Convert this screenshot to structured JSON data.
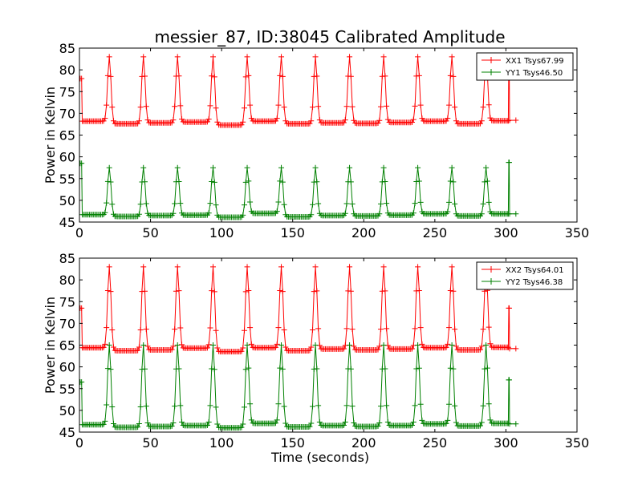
{
  "figure": {
    "title": "messier_87, ID:38045 Calibrated Amplitude"
  },
  "chart_data": [
    {
      "type": "line",
      "xlabel": "",
      "ylabel": "Power in Kelvin",
      "xlim": [
        0,
        350
      ],
      "ylim": [
        45,
        85
      ],
      "xticks": [
        "0",
        "50",
        "100",
        "150",
        "200",
        "250",
        "300",
        "350"
      ],
      "yticks": [
        "45",
        "50",
        "55",
        "60",
        "65",
        "70",
        "75",
        "80",
        "85"
      ],
      "legend_position": "top-right",
      "grid": false,
      "peak_times": [
        21,
        45,
        69,
        94,
        118,
        142,
        166,
        190,
        214,
        238,
        262,
        286
      ],
      "series": [
        {
          "name": "XX1 Tsys67.99",
          "color": "#ff0000",
          "marker": "+",
          "baseline": 67.9,
          "baselines": [
            68.2,
            67.6,
            67.8,
            68.0,
            67.3,
            68.2,
            67.6,
            67.8,
            67.7,
            67.9,
            68.2,
            67.6,
            68.3
          ],
          "peak": 83,
          "start_value": 78,
          "end_x": 302,
          "end_spike": 82,
          "tail_x": 307,
          "tail_value": 68.4
        },
        {
          "name": "YY1 Tsys46.50",
          "color": "#008000",
          "marker": "+",
          "baseline": 46.5,
          "baselines": [
            46.7,
            46.3,
            46.5,
            46.6,
            46.1,
            47.0,
            46.2,
            46.5,
            46.4,
            46.6,
            46.9,
            46.4,
            46.9
          ],
          "peak": 57.5,
          "start_value": 58.5,
          "end_x": 302,
          "end_spike": 58.7,
          "tail_x": 307,
          "tail_value": 46.9
        }
      ]
    },
    {
      "type": "line",
      "xlabel": "Time (seconds)",
      "ylabel": "Power in Kelvin",
      "xlim": [
        0,
        350
      ],
      "ylim": [
        45,
        85
      ],
      "xticks": [
        "0",
        "50",
        "100",
        "150",
        "200",
        "250",
        "300",
        "350"
      ],
      "yticks": [
        "45",
        "50",
        "55",
        "60",
        "65",
        "70",
        "75",
        "80",
        "85"
      ],
      "legend_position": "top-right",
      "grid": false,
      "peak_times": [
        21,
        45,
        69,
        94,
        118,
        142,
        166,
        190,
        214,
        238,
        262,
        286
      ],
      "series": [
        {
          "name": "XX2 Tsys64.01",
          "color": "#ff0000",
          "marker": "+",
          "baseline": 64.0,
          "baselines": [
            64.4,
            63.7,
            63.9,
            64.3,
            63.5,
            64.4,
            63.7,
            64.1,
            63.9,
            64.1,
            64.4,
            63.9,
            64.5
          ],
          "peak": 83,
          "start_value": 73.5,
          "end_x": 302,
          "end_spike": 73.5,
          "tail_x": 307,
          "tail_value": 64.2
        },
        {
          "name": "YY2 Tsys46.38",
          "color": "#008000",
          "marker": "+",
          "baseline": 46.5,
          "baselines": [
            46.7,
            46.1,
            46.3,
            46.5,
            46.0,
            47.0,
            46.2,
            46.5,
            46.3,
            46.5,
            46.9,
            46.4,
            47.0
          ],
          "peak": 65,
          "start_value": 56.5,
          "end_x": 302,
          "end_spike": 57,
          "tail_x": 307,
          "tail_value": 46.9
        }
      ]
    }
  ]
}
